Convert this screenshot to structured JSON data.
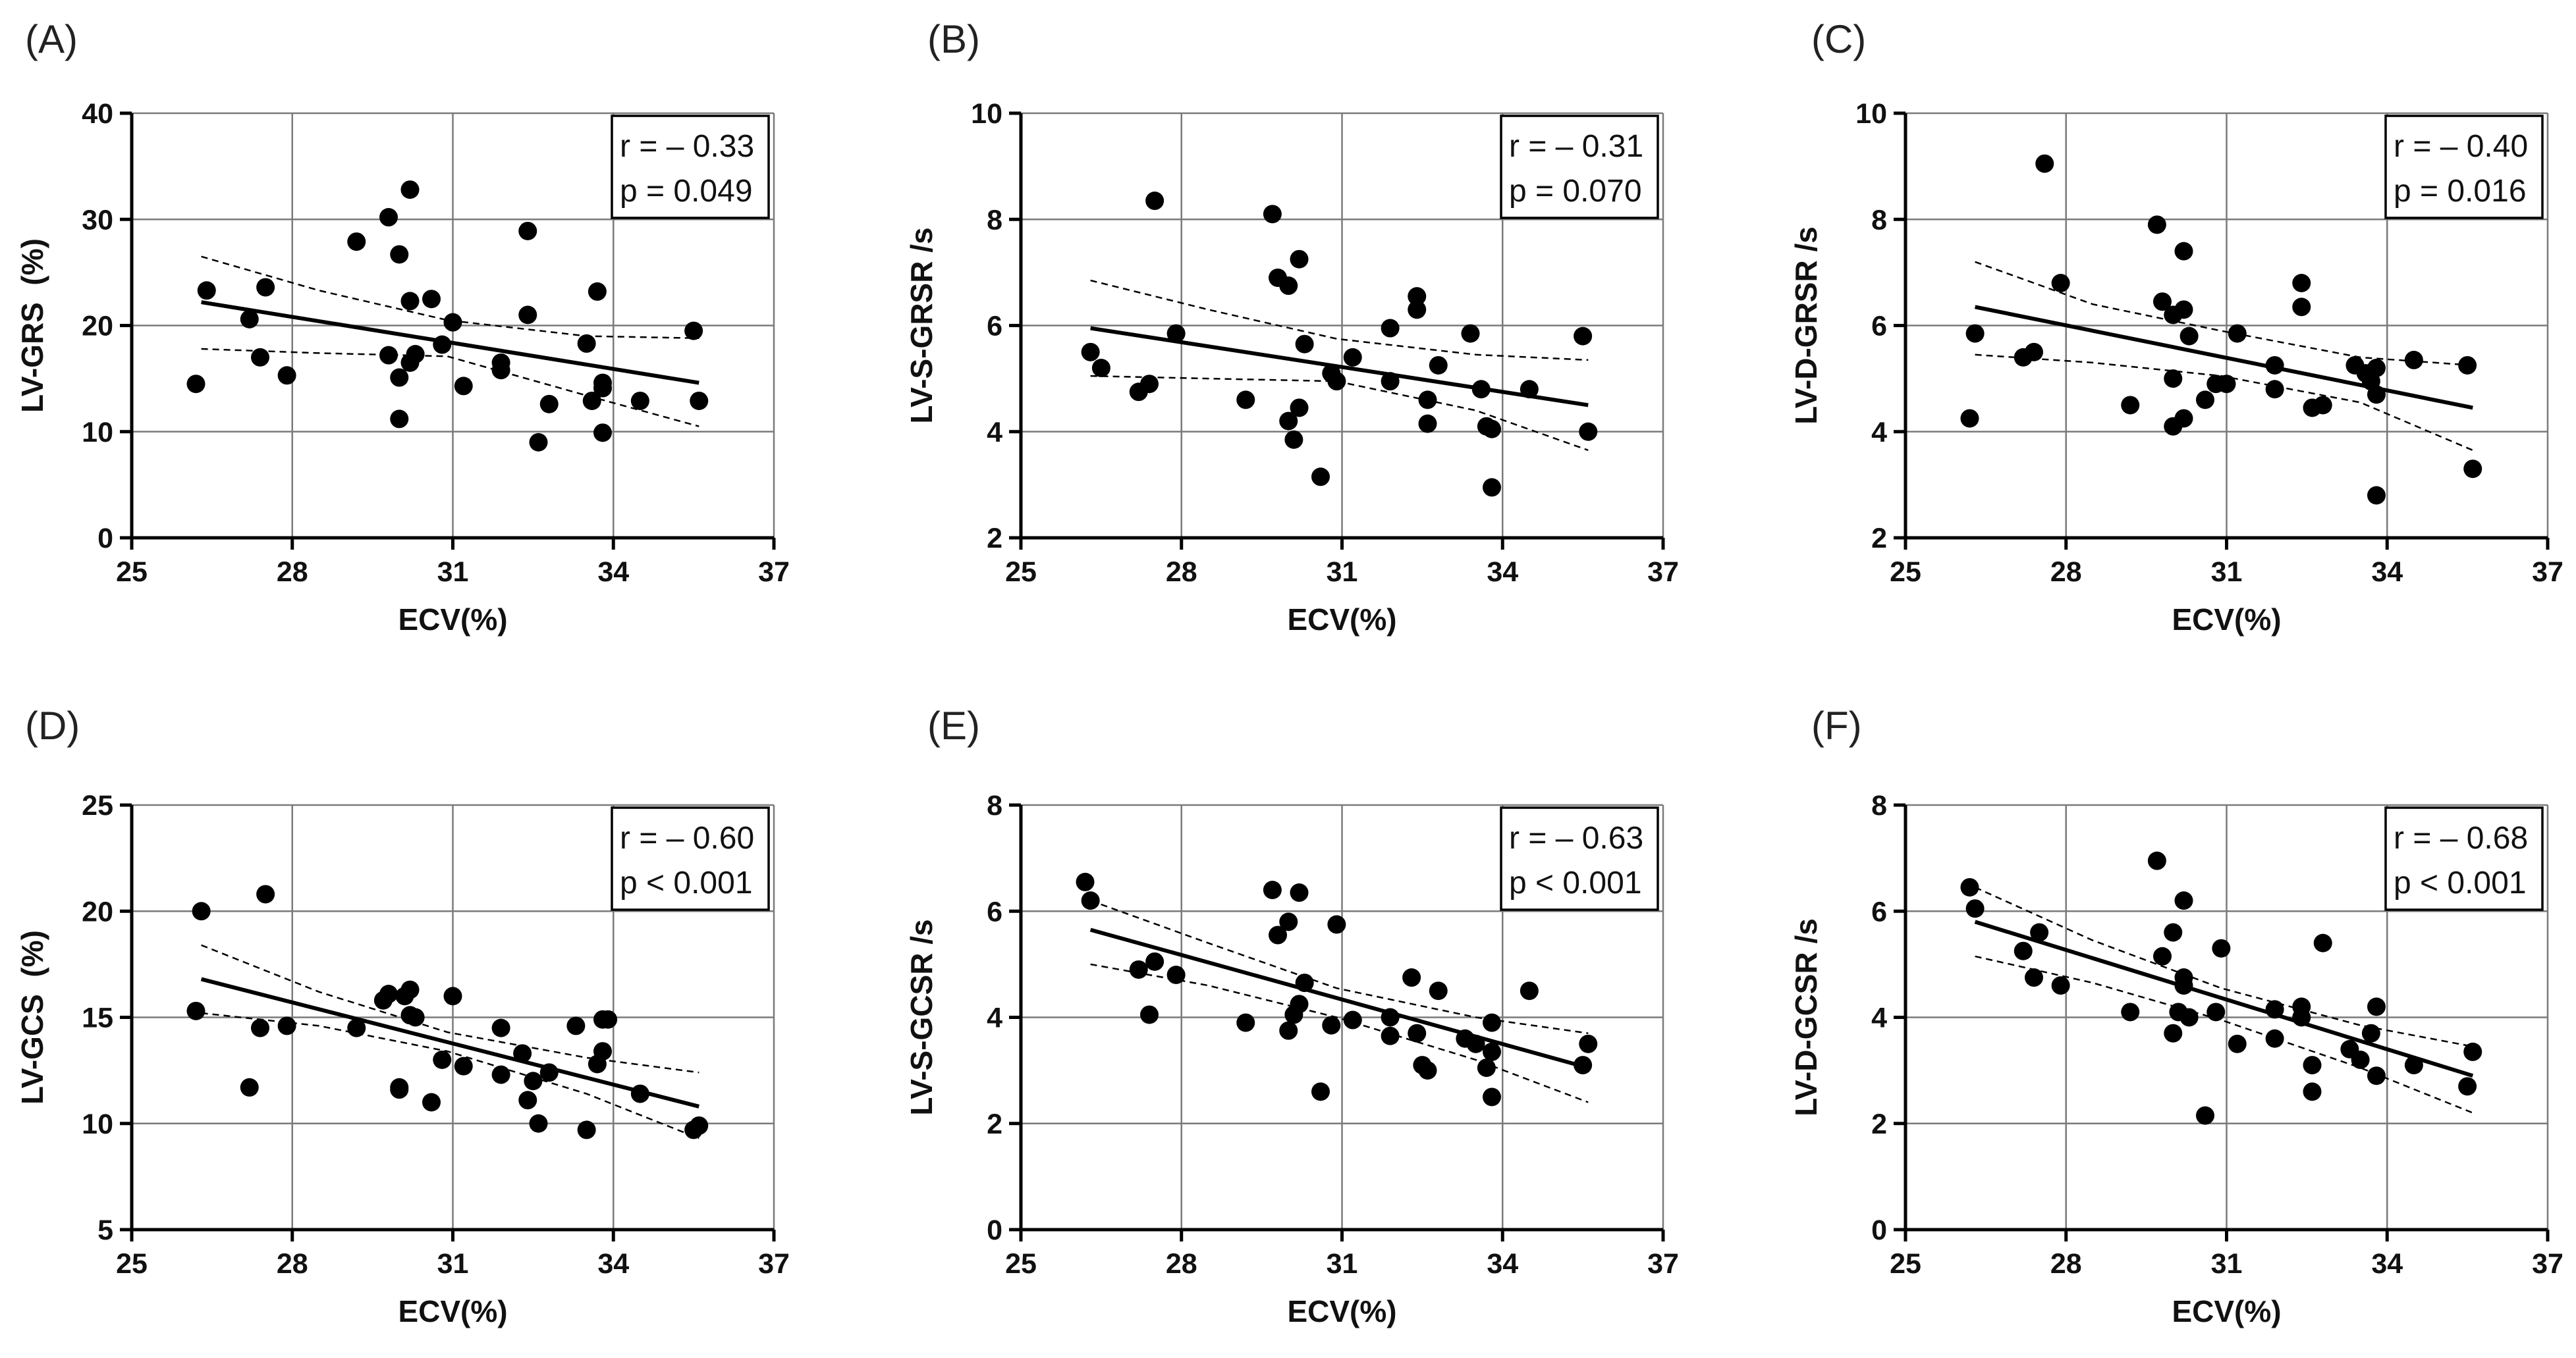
{
  "chart_data": [
    {
      "type": "scatter",
      "panel": "(A)",
      "xlabel": "ECV(%)",
      "ylabel": "LV-GRS  (%)",
      "xlim": [
        25,
        37
      ],
      "ylim": [
        0,
        40
      ],
      "xticks": [
        25,
        28,
        31,
        34,
        37
      ],
      "yticks": [
        0,
        10,
        20,
        30,
        40
      ],
      "grid": true,
      "stats": [
        "r = – 0.33",
        "p = 0.049"
      ],
      "fit": {
        "x": [
          26.3,
          35.6
        ],
        "y": [
          22.2,
          14.6
        ]
      },
      "ci_upper": [
        [
          26.3,
          26.5
        ],
        [
          28.5,
          23.3
        ],
        [
          30.9,
          20.5
        ],
        [
          33.5,
          19.0
        ],
        [
          35.6,
          18.8
        ]
      ],
      "ci_lower": [
        [
          26.3,
          17.8
        ],
        [
          28.5,
          17.4
        ],
        [
          30.9,
          17.1
        ],
        [
          33.5,
          13.4
        ],
        [
          35.6,
          10.5
        ]
      ],
      "points": [
        [
          26.2,
          14.5
        ],
        [
          26.4,
          23.3
        ],
        [
          27.2,
          20.6
        ],
        [
          27.4,
          17.0
        ],
        [
          27.5,
          23.6
        ],
        [
          27.9,
          15.3
        ],
        [
          29.2,
          27.9
        ],
        [
          29.8,
          30.2
        ],
        [
          29.8,
          17.2
        ],
        [
          30.0,
          11.2
        ],
        [
          30.0,
          15.1
        ],
        [
          30.0,
          26.7
        ],
        [
          30.2,
          32.8
        ],
        [
          30.2,
          16.5
        ],
        [
          30.2,
          22.3
        ],
        [
          30.3,
          17.3
        ],
        [
          30.6,
          22.5
        ],
        [
          30.8,
          18.2
        ],
        [
          31.0,
          20.3
        ],
        [
          31.2,
          14.3
        ],
        [
          31.9,
          16.5
        ],
        [
          31.9,
          15.8
        ],
        [
          32.4,
          28.9
        ],
        [
          32.4,
          21.0
        ],
        [
          32.6,
          9.0
        ],
        [
          32.8,
          12.6
        ],
        [
          33.5,
          18.3
        ],
        [
          33.6,
          12.9
        ],
        [
          33.7,
          23.2
        ],
        [
          33.8,
          14.6
        ],
        [
          33.8,
          14.1
        ],
        [
          33.8,
          9.9
        ],
        [
          34.5,
          12.9
        ],
        [
          35.5,
          19.5
        ],
        [
          35.6,
          12.9
        ]
      ]
    },
    {
      "type": "scatter",
      "panel": "(B)",
      "xlabel": "ECV(%)",
      "ylabel": "LV-S-GRSR /s",
      "xlim": [
        25,
        37
      ],
      "ylim": [
        2,
        10
      ],
      "xticks": [
        25,
        28,
        31,
        34,
        37
      ],
      "yticks": [
        2,
        4,
        6,
        8,
        10
      ],
      "grid": true,
      "stats": [
        "r = – 0.31",
        "p = 0.070"
      ],
      "fit": {
        "x": [
          26.3,
          35.6
        ],
        "y": [
          5.95,
          4.5
        ]
      },
      "ci_upper": [
        [
          26.3,
          6.85
        ],
        [
          28.5,
          6.3
        ],
        [
          30.9,
          5.75
        ],
        [
          33.5,
          5.45
        ],
        [
          35.6,
          5.35
        ]
      ],
      "ci_lower": [
        [
          26.3,
          5.05
        ],
        [
          28.5,
          5.0
        ],
        [
          30.9,
          4.95
        ],
        [
          33.5,
          4.4
        ],
        [
          35.6,
          3.65
        ]
      ],
      "points": [
        [
          26.3,
          5.5
        ],
        [
          26.5,
          5.2
        ],
        [
          27.2,
          4.75
        ],
        [
          27.4,
          4.9
        ],
        [
          27.5,
          8.35
        ],
        [
          27.9,
          5.85
        ],
        [
          29.2,
          4.6
        ],
        [
          29.7,
          8.1
        ],
        [
          29.8,
          6.9
        ],
        [
          30.0,
          6.75
        ],
        [
          30.0,
          4.2
        ],
        [
          30.1,
          3.85
        ],
        [
          30.2,
          7.25
        ],
        [
          30.2,
          4.45
        ],
        [
          30.3,
          5.65
        ],
        [
          30.6,
          3.15
        ],
        [
          30.8,
          5.1
        ],
        [
          30.9,
          4.95
        ],
        [
          31.2,
          5.4
        ],
        [
          31.9,
          5.95
        ],
        [
          31.9,
          4.95
        ],
        [
          32.4,
          6.55
        ],
        [
          32.4,
          6.3
        ],
        [
          32.6,
          4.6
        ],
        [
          32.6,
          4.15
        ],
        [
          32.8,
          5.25
        ],
        [
          33.4,
          5.85
        ],
        [
          33.6,
          4.8
        ],
        [
          33.7,
          4.1
        ],
        [
          33.8,
          4.05
        ],
        [
          33.8,
          2.95
        ],
        [
          34.5,
          4.8
        ],
        [
          35.5,
          5.8
        ],
        [
          35.6,
          4.0
        ]
      ]
    },
    {
      "type": "scatter",
      "panel": "(C)",
      "xlabel": "ECV(%)",
      "ylabel": "LV-D-GRSR /s",
      "xlim": [
        25,
        37
      ],
      "ylim": [
        2,
        10
      ],
      "xticks": [
        25,
        28,
        31,
        34,
        37
      ],
      "yticks": [
        2,
        4,
        6,
        8,
        10
      ],
      "grid": true,
      "stats": [
        "r = – 0.40",
        "p = 0.016"
      ],
      "fit": {
        "x": [
          26.3,
          35.6
        ],
        "y": [
          6.35,
          4.45
        ]
      },
      "ci_upper": [
        [
          26.3,
          7.2
        ],
        [
          28.5,
          6.4
        ],
        [
          30.9,
          5.9
        ],
        [
          33.5,
          5.4
        ],
        [
          35.6,
          5.25
        ]
      ],
      "ci_lower": [
        [
          26.3,
          5.45
        ],
        [
          28.5,
          5.3
        ],
        [
          30.9,
          5.05
        ],
        [
          33.5,
          4.55
        ],
        [
          35.6,
          3.65
        ]
      ],
      "points": [
        [
          26.2,
          4.25
        ],
        [
          26.3,
          5.85
        ],
        [
          27.2,
          5.4
        ],
        [
          27.4,
          5.5
        ],
        [
          27.6,
          9.05
        ],
        [
          27.9,
          6.8
        ],
        [
          29.2,
          4.5
        ],
        [
          29.7,
          7.9
        ],
        [
          29.8,
          6.45
        ],
        [
          30.0,
          4.1
        ],
        [
          30.0,
          6.2
        ],
        [
          30.0,
          5.0
        ],
        [
          30.2,
          7.4
        ],
        [
          30.2,
          6.3
        ],
        [
          30.2,
          4.25
        ],
        [
          30.3,
          5.8
        ],
        [
          30.6,
          4.6
        ],
        [
          30.8,
          4.9
        ],
        [
          31.0,
          4.9
        ],
        [
          31.2,
          5.85
        ],
        [
          31.9,
          5.25
        ],
        [
          31.9,
          4.8
        ],
        [
          32.4,
          6.8
        ],
        [
          32.4,
          6.35
        ],
        [
          32.6,
          4.45
        ],
        [
          32.8,
          4.5
        ],
        [
          33.4,
          5.25
        ],
        [
          33.6,
          5.1
        ],
        [
          33.7,
          4.95
        ],
        [
          33.8,
          5.2
        ],
        [
          33.8,
          4.7
        ],
        [
          33.8,
          2.8
        ],
        [
          34.5,
          5.35
        ],
        [
          35.5,
          5.25
        ],
        [
          35.6,
          3.3
        ]
      ]
    },
    {
      "type": "scatter",
      "panel": "(D)",
      "xlabel": "ECV(%)",
      "ylabel": "LV-GCS  (%)",
      "xlim": [
        25,
        37
      ],
      "ylim": [
        5,
        25
      ],
      "xticks": [
        25,
        28,
        31,
        34,
        37
      ],
      "yticks": [
        5,
        10,
        15,
        20,
        25
      ],
      "grid": true,
      "stats": [
        "r = – 0.60",
        "p < 0.001"
      ],
      "fit": {
        "x": [
          26.3,
          35.6
        ],
        "y": [
          16.8,
          10.8
        ]
      },
      "ci_upper": [
        [
          26.3,
          18.4
        ],
        [
          28.5,
          16.2
        ],
        [
          30.9,
          14.3
        ],
        [
          33.5,
          13.1
        ],
        [
          35.6,
          12.4
        ]
      ],
      "ci_lower": [
        [
          26.3,
          15.2
        ],
        [
          28.5,
          14.6
        ],
        [
          30.9,
          13.4
        ],
        [
          33.5,
          11.4
        ],
        [
          35.6,
          9.3
        ]
      ],
      "points": [
        [
          26.2,
          15.3
        ],
        [
          26.3,
          20.0
        ],
        [
          27.2,
          11.7
        ],
        [
          27.4,
          14.5
        ],
        [
          27.5,
          20.8
        ],
        [
          27.9,
          14.6
        ],
        [
          29.2,
          14.5
        ],
        [
          29.7,
          15.8
        ],
        [
          29.8,
          16.1
        ],
        [
          30.0,
          11.7
        ],
        [
          30.0,
          11.6
        ],
        [
          30.1,
          16.0
        ],
        [
          30.2,
          16.3
        ],
        [
          30.2,
          15.1
        ],
        [
          30.3,
          15.0
        ],
        [
          30.6,
          11.0
        ],
        [
          30.8,
          13.0
        ],
        [
          31.0,
          16.0
        ],
        [
          31.2,
          12.7
        ],
        [
          31.9,
          12.3
        ],
        [
          31.9,
          14.5
        ],
        [
          32.3,
          13.3
        ],
        [
          32.4,
          11.1
        ],
        [
          32.5,
          12.0
        ],
        [
          32.6,
          10.0
        ],
        [
          32.8,
          12.4
        ],
        [
          33.3,
          14.6
        ],
        [
          33.5,
          9.7
        ],
        [
          33.7,
          12.8
        ],
        [
          33.8,
          14.9
        ],
        [
          33.8,
          13.4
        ],
        [
          33.9,
          14.9
        ],
        [
          34.5,
          11.4
        ],
        [
          35.5,
          9.7
        ],
        [
          35.6,
          9.9
        ]
      ]
    },
    {
      "type": "scatter",
      "panel": "(E)",
      "xlabel": "ECV(%)",
      "ylabel": "LV-S-GCSR /s",
      "xlim": [
        25,
        37
      ],
      "ylim": [
        0,
        8
      ],
      "xticks": [
        25,
        28,
        31,
        34,
        37
      ],
      "yticks": [
        0,
        2,
        4,
        6,
        8
      ],
      "grid": true,
      "stats": [
        "r = – 0.63",
        "p < 0.001"
      ],
      "fit": {
        "x": [
          26.3,
          35.6
        ],
        "y": [
          5.65,
          3.05
        ]
      },
      "ci_upper": [
        [
          26.3,
          6.2
        ],
        [
          28.5,
          5.4
        ],
        [
          30.9,
          4.55
        ],
        [
          33.5,
          4.0
        ],
        [
          35.6,
          3.7
        ]
      ],
      "ci_lower": [
        [
          26.3,
          5.0
        ],
        [
          28.5,
          4.6
        ],
        [
          30.9,
          4.0
        ],
        [
          33.5,
          3.2
        ],
        [
          35.6,
          2.4
        ]
      ],
      "points": [
        [
          26.2,
          6.55
        ],
        [
          26.3,
          6.2
        ],
        [
          27.2,
          4.9
        ],
        [
          27.4,
          4.05
        ],
        [
          27.5,
          5.05
        ],
        [
          27.9,
          4.8
        ],
        [
          29.2,
          3.9
        ],
        [
          29.7,
          6.4
        ],
        [
          29.8,
          5.55
        ],
        [
          30.0,
          5.8
        ],
        [
          30.0,
          3.75
        ],
        [
          30.1,
          4.05
        ],
        [
          30.2,
          6.35
        ],
        [
          30.2,
          4.25
        ],
        [
          30.3,
          4.65
        ],
        [
          30.6,
          2.6
        ],
        [
          30.8,
          3.85
        ],
        [
          30.9,
          5.75
        ],
        [
          31.2,
          3.95
        ],
        [
          31.9,
          3.65
        ],
        [
          31.9,
          4.0
        ],
        [
          32.3,
          4.75
        ],
        [
          32.4,
          3.7
        ],
        [
          32.5,
          3.1
        ],
        [
          32.6,
          3.0
        ],
        [
          32.8,
          4.5
        ],
        [
          33.3,
          3.6
        ],
        [
          33.5,
          3.5
        ],
        [
          33.7,
          3.05
        ],
        [
          33.8,
          3.9
        ],
        [
          33.8,
          3.35
        ],
        [
          33.8,
          2.5
        ],
        [
          34.5,
          4.5
        ],
        [
          35.5,
          3.1
        ],
        [
          35.6,
          3.5
        ]
      ]
    },
    {
      "type": "scatter",
      "panel": "(F)",
      "xlabel": "ECV(%)",
      "ylabel": "LV-D-GCSR /s",
      "xlim": [
        25,
        37
      ],
      "ylim": [
        0,
        8
      ],
      "xticks": [
        25,
        28,
        31,
        34,
        37
      ],
      "yticks": [
        0,
        2,
        4,
        6,
        8
      ],
      "grid": true,
      "stats": [
        "r = – 0.68",
        "p < 0.001"
      ],
      "fit": {
        "x": [
          26.3,
          35.6
        ],
        "y": [
          5.8,
          2.9
        ]
      },
      "ci_upper": [
        [
          26.3,
          6.45
        ],
        [
          28.5,
          5.45
        ],
        [
          30.9,
          4.55
        ],
        [
          33.5,
          3.85
        ],
        [
          35.6,
          3.45
        ]
      ],
      "ci_lower": [
        [
          26.3,
          5.15
        ],
        [
          28.5,
          4.65
        ],
        [
          30.9,
          3.95
        ],
        [
          33.5,
          3.05
        ],
        [
          35.6,
          2.2
        ]
      ],
      "points": [
        [
          26.2,
          6.45
        ],
        [
          26.3,
          6.05
        ],
        [
          27.2,
          5.25
        ],
        [
          27.4,
          4.75
        ],
        [
          27.5,
          5.6
        ],
        [
          27.9,
          4.6
        ],
        [
          29.2,
          4.1
        ],
        [
          29.7,
          6.95
        ],
        [
          29.8,
          5.15
        ],
        [
          30.0,
          3.7
        ],
        [
          30.0,
          5.6
        ],
        [
          30.1,
          4.1
        ],
        [
          30.2,
          6.2
        ],
        [
          30.2,
          4.6
        ],
        [
          30.2,
          4.75
        ],
        [
          30.3,
          4.0
        ],
        [
          30.6,
          2.15
        ],
        [
          30.8,
          4.1
        ],
        [
          30.9,
          5.3
        ],
        [
          31.2,
          3.5
        ],
        [
          31.9,
          4.15
        ],
        [
          31.9,
          3.6
        ],
        [
          32.4,
          4.2
        ],
        [
          32.4,
          4.0
        ],
        [
          32.6,
          2.6
        ],
        [
          32.6,
          3.1
        ],
        [
          32.8,
          5.4
        ],
        [
          33.3,
          3.4
        ],
        [
          33.5,
          3.2
        ],
        [
          33.7,
          3.7
        ],
        [
          33.8,
          4.2
        ],
        [
          33.8,
          2.9
        ],
        [
          34.5,
          3.1
        ],
        [
          35.5,
          2.7
        ],
        [
          35.6,
          3.35
        ]
      ]
    }
  ]
}
